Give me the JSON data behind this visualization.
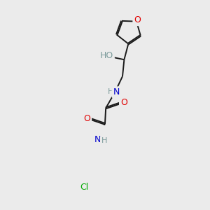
{
  "background_color": "#ebebeb",
  "bond_color": "#1a1a1a",
  "atom_colors": {
    "O": "#e00000",
    "N": "#0000cc",
    "Cl": "#00aa00",
    "C": "#1a1a1a",
    "H": "#7a9a9a"
  },
  "figsize": [
    3.0,
    3.0
  ],
  "dpi": 100
}
